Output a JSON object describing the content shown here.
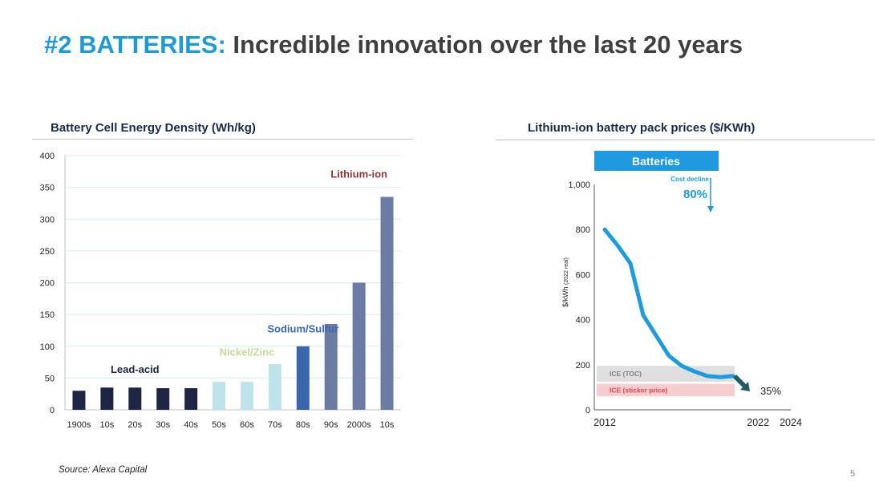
{
  "slide": {
    "title_accent": "#2 BATTERIES:",
    "title_rest": "Incredible innovation over the last 20 years",
    "source": "Source: Alexa Capital",
    "page_number": "5"
  },
  "chart_data": [
    {
      "type": "bar",
      "title": "Battery Cell Energy Density (Wh/kg)",
      "xlabel": "",
      "ylabel": "",
      "categories": [
        "1900s",
        "10s",
        "20s",
        "30s",
        "40s",
        "50s",
        "60s",
        "70s",
        "80s",
        "90s",
        "2000s",
        "10s"
      ],
      "values": [
        30,
        35,
        35,
        34,
        34,
        44,
        44,
        72,
        100,
        135,
        200,
        335
      ],
      "bar_colors": [
        "#1f2544",
        "#1f2544",
        "#1f2544",
        "#1f2544",
        "#1f2544",
        "#bfe3ea",
        "#bfe3ea",
        "#bfe3ea",
        "#3a67ac",
        "#6a7ba4",
        "#6a7ba4",
        "#6a7ba4"
      ],
      "ylim": [
        0,
        400
      ],
      "yticks": [
        0,
        50,
        100,
        150,
        200,
        250,
        300,
        350,
        400
      ],
      "grid": true,
      "annotations": [
        {
          "text": "Lead-acid",
          "color": "#1f2544",
          "x_category": 2,
          "y": 58
        },
        {
          "text": "Nickel/Zinc",
          "color": "#c8d79c",
          "x_category": 6,
          "y": 85
        },
        {
          "text": "Sodium/Sulfur",
          "color": "#3a67ac",
          "x_category": 8,
          "y": 122
        },
        {
          "text": "Lithium-ion",
          "color": "#8b3a3a",
          "x_category": 10,
          "y": 365
        }
      ]
    },
    {
      "type": "line",
      "title": "Lithium-ion battery pack prices ($/KWh)",
      "banner": "Batteries",
      "ylabel": "$/kWh",
      "ylabel_note": "(2022 real)",
      "x_tick_labels": [
        "2012",
        "2022",
        "2024"
      ],
      "xlim": [
        2012,
        2024
      ],
      "ylim": [
        0,
        1000
      ],
      "yticks": [
        "0",
        "200",
        "400",
        "600",
        "800",
        "1,000"
      ],
      "series": [
        {
          "x": [
            2012,
            2013,
            2014,
            2015,
            2016,
            2017,
            2018,
            2019,
            2020,
            2021,
            2022
          ],
          "y": [
            800,
            730,
            650,
            420,
            330,
            240,
            195,
            170,
            150,
            145,
            150
          ],
          "color": "#1e9be0"
        }
      ],
      "bands": [
        {
          "label": "ICE (TOC)",
          "color": "#d9d9d9",
          "y_range": [
            125,
            195
          ]
        },
        {
          "label": "ICE (sticker price)",
          "color": "#f6c4c7",
          "y_range": [
            60,
            115
          ]
        }
      ],
      "annotations": [
        {
          "text": "Cost decline",
          "value": "80%",
          "color": "#1e9be0"
        },
        {
          "text": "35%",
          "color": "#1f5d66"
        }
      ]
    }
  ]
}
